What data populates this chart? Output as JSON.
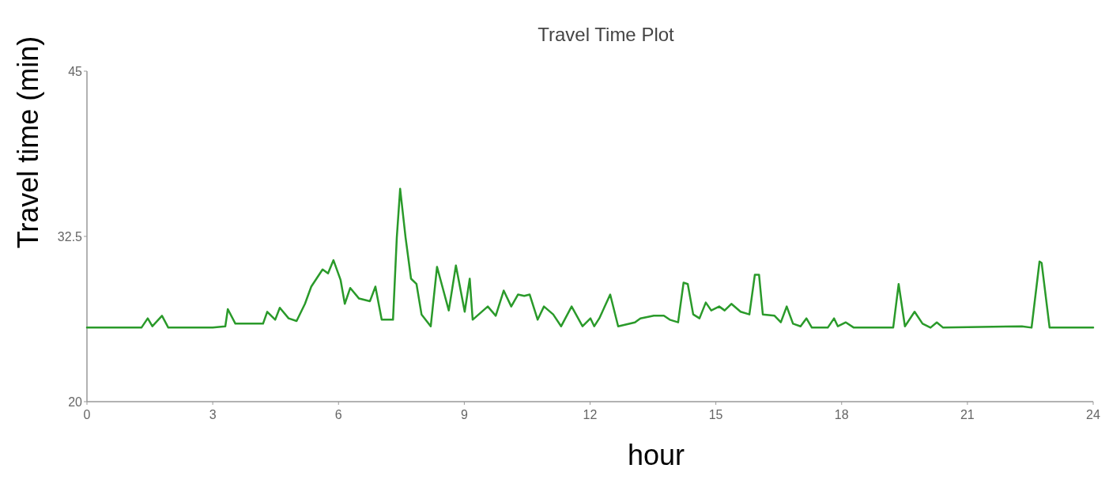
{
  "chart_data": {
    "type": "line",
    "title": "Travel Time Plot",
    "xlabel": "hour",
    "ylabel": "Travel time (min)",
    "xlim": [
      0,
      24
    ],
    "xticks": [
      0,
      3,
      6,
      9,
      12,
      15,
      18,
      21,
      24
    ],
    "ylim": [
      20,
      45
    ],
    "yticks": [
      20,
      32.5,
      45
    ],
    "marker": "none",
    "line_style": "solid",
    "series": [
      {
        "color": "#2a9a2a",
        "x": [
          0,
          1.3,
          1.45,
          1.56,
          1.79,
          1.94,
          3,
          3.3,
          3.36,
          3.54,
          4.2,
          4.3,
          4.49,
          4.6,
          4.81,
          5,
          5.2,
          5.35,
          5.62,
          5.75,
          5.88,
          6.05,
          6.15,
          6.28,
          6.49,
          6.75,
          6.88,
          7.03,
          7.3,
          7.39,
          7.47,
          7.6,
          7.73,
          7.86,
          7.98,
          8.2,
          8.35,
          8.63,
          8.8,
          9.01,
          9.13,
          9.2,
          9.56,
          9.75,
          9.94,
          10.12,
          10.28,
          10.43,
          10.56,
          10.75,
          10.9,
          11.12,
          11.31,
          11.56,
          11.82,
          12.01,
          12.1,
          12.22,
          12.48,
          12.67,
          13.07,
          13.2,
          13.52,
          13.76,
          13.9,
          14.1,
          14.23,
          14.33,
          14.46,
          14.61,
          14.76,
          14.89,
          15.08,
          15.21,
          15.37,
          15.59,
          15.8,
          15.93,
          16.03,
          16.12,
          16.4,
          16.55,
          16.69,
          16.84,
          17.02,
          17.16,
          17.29,
          17.67,
          17.82,
          17.91,
          18.1,
          18.29,
          19.23,
          19.36,
          19.51,
          19.74,
          19.93,
          20.12,
          20.27,
          20.42,
          22.3,
          22.53,
          22.72,
          22.77,
          22.96,
          24
        ],
        "values": [
          25.6,
          25.6,
          26.3,
          25.7,
          26.5,
          25.6,
          25.6,
          25.7,
          27,
          25.9,
          25.9,
          26.8,
          26.2,
          27.1,
          26.3,
          26.1,
          27.4,
          28.7,
          30,
          29.7,
          30.7,
          29.2,
          27.4,
          28.6,
          27.8,
          27.6,
          28.7,
          26.2,
          26.2,
          32.4,
          36.1,
          32.4,
          29.3,
          28.9,
          26.6,
          25.7,
          30.2,
          26.9,
          30.3,
          26.8,
          29.3,
          26.2,
          27.2,
          26.5,
          28.4,
          27.2,
          28.1,
          28,
          28.1,
          26.2,
          27.2,
          26.6,
          25.7,
          27.2,
          25.7,
          26.3,
          25.7,
          26.3,
          28.1,
          25.7,
          26,
          26.3,
          26.5,
          26.5,
          26.2,
          26,
          29,
          28.9,
          26.6,
          26.3,
          27.5,
          26.9,
          27.2,
          26.9,
          27.4,
          26.8,
          26.6,
          29.6,
          29.6,
          26.6,
          26.5,
          26,
          27.2,
          25.9,
          25.7,
          26.3,
          25.6,
          25.6,
          26.3,
          25.7,
          26,
          25.6,
          25.6,
          28.9,
          25.7,
          26.8,
          25.9,
          25.6,
          26,
          25.6,
          25.7,
          25.6,
          30.6,
          30.5,
          25.6,
          25.6
        ]
      }
    ]
  }
}
